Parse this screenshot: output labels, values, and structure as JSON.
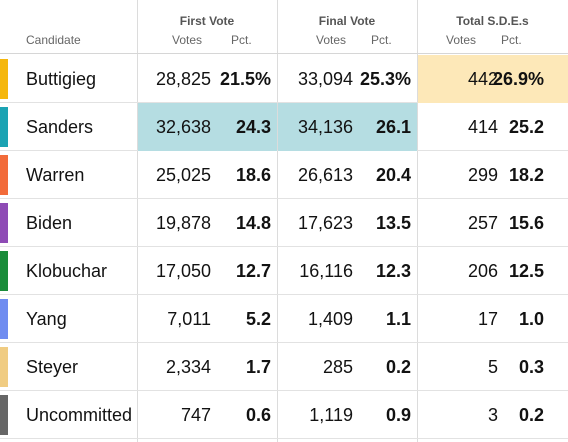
{
  "header": {
    "candidate_label": "Candidate",
    "groups": [
      {
        "title": "First Vote",
        "votes_label": "Votes",
        "pct_label": "Pct."
      },
      {
        "title": "Final Vote",
        "votes_label": "Votes",
        "pct_label": "Pct."
      },
      {
        "title": "Total S.D.E.s",
        "votes_label": "Votes",
        "pct_label": "Pct."
      }
    ]
  },
  "highlight_colors": {
    "teal": "#b5dde2",
    "gold": "#fde8b8"
  },
  "rows": [
    {
      "name": "Buttigieg",
      "color": "#f5b70d",
      "first_votes": "28,825",
      "first_pct": "21.5%",
      "final_votes": "33,094",
      "final_pct": "25.3%",
      "sde_votes": "442",
      "sde_pct": "26.9%",
      "highlight": [
        false,
        false,
        true
      ]
    },
    {
      "name": "Sanders",
      "color": "#1ba3b3",
      "first_votes": "32,638",
      "first_pct": "24.3",
      "final_votes": "34,136",
      "final_pct": "26.1",
      "sde_votes": "414",
      "sde_pct": "25.2",
      "highlight": [
        true,
        true,
        false
      ]
    },
    {
      "name": "Warren",
      "color": "#f26b3a",
      "first_votes": "25,025",
      "first_pct": "18.6",
      "final_votes": "26,613",
      "final_pct": "20.4",
      "sde_votes": "299",
      "sde_pct": "18.2",
      "highlight": [
        false,
        false,
        false
      ]
    },
    {
      "name": "Biden",
      "color": "#8e4bb5",
      "first_votes": "19,878",
      "first_pct": "14.8",
      "final_votes": "17,623",
      "final_pct": "13.5",
      "sde_votes": "257",
      "sde_pct": "15.6",
      "highlight": [
        false,
        false,
        false
      ]
    },
    {
      "name": "Klobuchar",
      "color": "#1a8c3a",
      "first_votes": "17,050",
      "first_pct": "12.7",
      "final_votes": "16,116",
      "final_pct": "12.3",
      "sde_votes": "206",
      "sde_pct": "12.5",
      "highlight": [
        false,
        false,
        false
      ]
    },
    {
      "name": "Yang",
      "color": "#6f8cf0",
      "first_votes": "7,011",
      "first_pct": "5.2",
      "final_votes": "1,409",
      "final_pct": "1.1",
      "sde_votes": "17",
      "sde_pct": "1.0",
      "highlight": [
        false,
        false,
        false
      ]
    },
    {
      "name": "Steyer",
      "color": "#f0cc82",
      "first_votes": "2,334",
      "first_pct": "1.7",
      "final_votes": "285",
      "final_pct": "0.2",
      "sde_votes": "5",
      "sde_pct": "0.3",
      "highlight": [
        false,
        false,
        false
      ]
    },
    {
      "name": "Uncommitted",
      "color": "#666666",
      "first_votes": "747",
      "first_pct": "0.6",
      "final_votes": "1,119",
      "final_pct": "0.9",
      "sde_votes": "3",
      "sde_pct": "0.2",
      "highlight": [
        false,
        false,
        false
      ]
    }
  ]
}
